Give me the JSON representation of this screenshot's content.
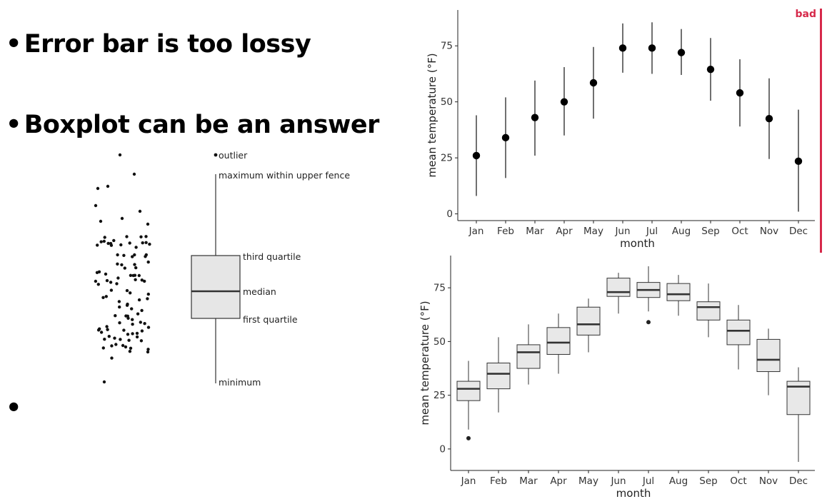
{
  "slide": {
    "bullets": [
      "Error bar is too lossy",
      "Boxplot can be an answer",
      ""
    ],
    "bad_tag": "bad",
    "bad_color": "#d6294a"
  },
  "diagram": {
    "labels": {
      "outlier": "outlier",
      "maximum": "maximum within upper fence",
      "third_quartile": "third quartile",
      "median": "median",
      "first_quartile": "first quartile",
      "minimum": "minimum"
    }
  },
  "chart_data": [
    {
      "type": "scatter",
      "subtype": "error-bar",
      "categories": [
        "Jan",
        "Feb",
        "Mar",
        "Apr",
        "May",
        "Jun",
        "Jul",
        "Aug",
        "Sep",
        "Oct",
        "Nov",
        "Dec"
      ],
      "mean": [
        26,
        34,
        43,
        50,
        58.5,
        74,
        74,
        72,
        64.5,
        54,
        42.5,
        23.5
      ],
      "low": [
        8,
        16,
        26,
        35,
        42.5,
        63,
        62.5,
        62,
        50.5,
        39,
        24.5,
        1
      ],
      "high": [
        44,
        52,
        59.5,
        65.5,
        74.5,
        85,
        85.5,
        82.5,
        78.5,
        69,
        60.5,
        46.5
      ],
      "xlabel": "month",
      "ylabel": "mean temperature (°F)",
      "yticks": [
        0,
        25,
        50,
        75
      ],
      "ylim": [
        -3,
        91
      ],
      "grid": false,
      "legend": "none"
    },
    {
      "type": "box",
      "categories": [
        "Jan",
        "Feb",
        "Mar",
        "Apr",
        "May",
        "Jun",
        "Jul",
        "Aug",
        "Sep",
        "Oct",
        "Nov",
        "Dec"
      ],
      "min": [
        9,
        17,
        30,
        35,
        45,
        63,
        64,
        62,
        52,
        37,
        25,
        -6
      ],
      "q1": [
        22.5,
        28,
        37.5,
        44,
        53,
        71,
        70.5,
        69,
        60,
        48.5,
        36,
        16
      ],
      "median": [
        28,
        35,
        45,
        49.5,
        58,
        73,
        74,
        72,
        66,
        55,
        41.5,
        29
      ],
      "q3": [
        31.5,
        40,
        48.5,
        56.5,
        66,
        79.5,
        77.5,
        77,
        68.5,
        60,
        51,
        31.5
      ],
      "max": [
        41,
        52,
        58,
        63,
        70,
        82,
        85,
        81,
        77,
        67,
        56,
        38
      ],
      "outliers": [
        [
          5
        ],
        [],
        [],
        [],
        [],
        [],
        [
          59
        ],
        [],
        [],
        [],
        [],
        []
      ],
      "xlabel": "month",
      "ylabel": "mean temperature (°F)",
      "yticks": [
        0,
        25,
        50,
        75
      ],
      "ylim": [
        -10,
        90
      ],
      "grid": false,
      "legend": "none"
    }
  ]
}
